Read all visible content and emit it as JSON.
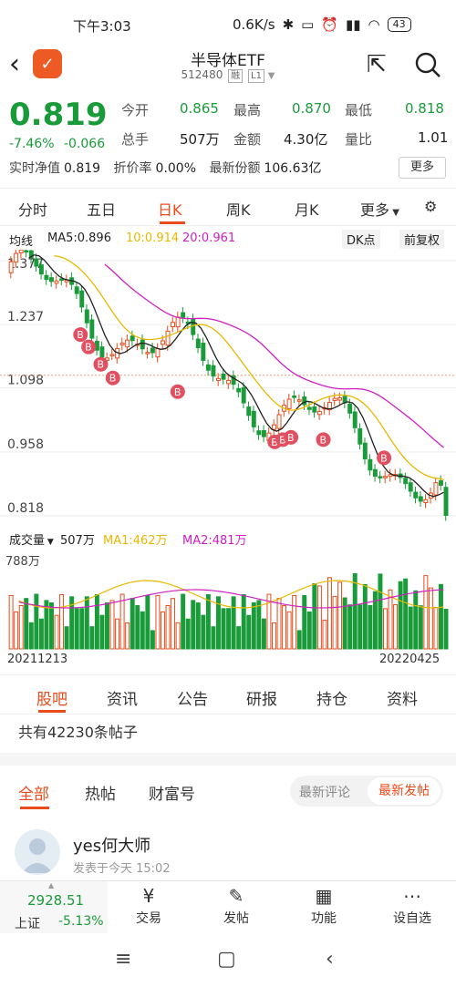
{
  "status": {
    "time": "下午3:03",
    "speed": "0.6K/s",
    "battery": "43"
  },
  "header": {
    "title": "半导体ETF",
    "code": "512480",
    "tag1": "融",
    "tag2": "L1"
  },
  "quote": {
    "price": "0.819",
    "change_pct": "-7.46%",
    "change_abs": "-0.066",
    "nav_label": "实时净值",
    "nav_value": "0.819",
    "discount_label": "折价率",
    "discount_value": "0.00%",
    "shares_label": "最新份额",
    "shares_value": "106.63亿",
    "open_label": "今开",
    "open_value": "0.865",
    "high_label": "最高",
    "high_value": "0.870",
    "low_label": "最低",
    "low_value": "0.818",
    "hand_label": "总手",
    "hand_value": "507万",
    "amount_label": "金额",
    "amount_value": "4.30亿",
    "ratio_label": "量比",
    "ratio_value": "1.01",
    "more_label": "更多"
  },
  "period_tabs": [
    "分时",
    "五日",
    "日K",
    "周K",
    "月K",
    "更多"
  ],
  "kline": {
    "legend_label": "均线",
    "ma5": "MA5:0.896",
    "ma10": "10:0.914",
    "ma20": "20:0.961",
    "dk_label": "DK点",
    "adj_label": "前复权",
    "y_ticks": [
      "1.377",
      "1.237",
      "1.098",
      "0.958",
      "0.818"
    ]
  },
  "volume": {
    "label": "成交量",
    "value": "507万",
    "ma1": "MA1:462万",
    "ma2": "MA2:481万",
    "max_tick": "788万",
    "date_start": "20211213",
    "date_end": "20220425"
  },
  "colors": {
    "up": "#e94b1b",
    "down": "#1a9b3a",
    "ma5": "#222222",
    "ma10": "#e8b800",
    "ma20": "#d020c0",
    "accent": "#e94b1b"
  },
  "bottom_tabs": [
    "股吧",
    "资讯",
    "公告",
    "研报",
    "持仓",
    "资料"
  ],
  "posts_count": "共有42230条帖子",
  "forum_tabs": [
    "全部",
    "热帖",
    "财富号"
  ],
  "sort": {
    "latest_comment": "最新评论",
    "latest_post": "最新发帖"
  },
  "post": {
    "author": "yes何大师",
    "time": "发表于今天 15:02"
  },
  "index_bar": {
    "value": "2928.51",
    "name": "上证",
    "pct": "-5.13%"
  },
  "actions": [
    {
      "label": "交易",
      "icon": "yen-icon"
    },
    {
      "label": "发帖",
      "icon": "edit-icon"
    },
    {
      "label": "功能",
      "icon": "grid-icon"
    },
    {
      "label": "设自选",
      "icon": "more-icon"
    }
  ]
}
